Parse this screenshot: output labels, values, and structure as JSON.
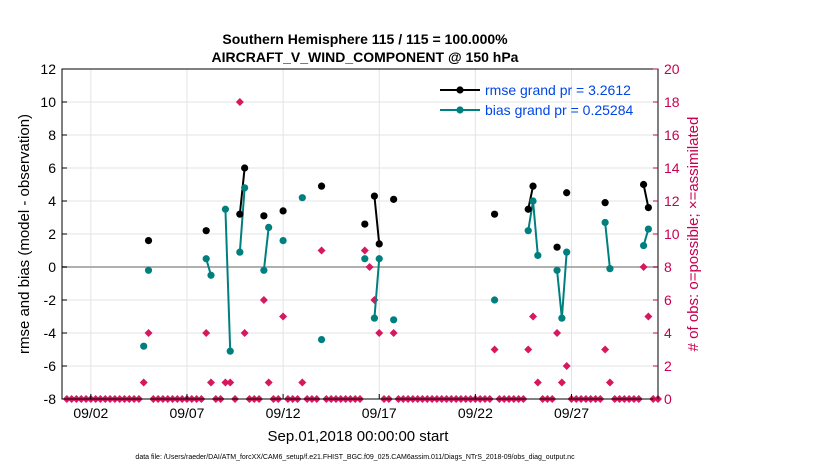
{
  "chart_data": {
    "type": "scatter",
    "title": [
      "Southern Hemisphere 115 / 115 = 100.000%",
      "AIRCRAFT_V_WIND_COMPONENT @ 150 hPa"
    ],
    "xlabel": "Sep.01,2018 00:00:00 start",
    "ylabel_left": "rmse and bias (model - observation)",
    "ylabel_right": "# of obs: o=possible; ×=assimilated",
    "footnote": "data file: /Users/raeder/DAI/ATM_forcXX/CAM6_setup/f.e21.FHIST_BGC.f09_025.CAM6assim.011/Diags_NTrS_2018-09/obs_diag_output.nc",
    "x_range": [
      0.5,
      31.5
    ],
    "x_ticks": [
      {
        "x": 2,
        "label": "09/02"
      },
      {
        "x": 7,
        "label": "09/07"
      },
      {
        "x": 12,
        "label": "09/12"
      },
      {
        "x": 17,
        "label": "09/17"
      },
      {
        "x": 22,
        "label": "09/22"
      },
      {
        "x": 27,
        "label": "09/27"
      }
    ],
    "ylim_left": [
      -8,
      12
    ],
    "yticks_left": [
      -8,
      -6,
      -4,
      -2,
      0,
      2,
      4,
      6,
      8,
      10,
      12
    ],
    "ylim_right": [
      0,
      20
    ],
    "yticks_right": [
      0,
      2,
      4,
      6,
      8,
      10,
      12,
      14,
      16,
      18,
      20
    ],
    "grid": true,
    "legend_position": "top-right",
    "colors": {
      "rmse": "#000000",
      "bias": "#007f7f",
      "count": "#d6185e",
      "zero_line": "#b0b0b0",
      "grid": "#e3e3e3"
    },
    "series": [
      {
        "name": "rmse grand pr = 3.2612",
        "color": "#000000",
        "points": [
          [
            5.0,
            1.6
          ],
          [
            8.0,
            2.2
          ],
          [
            9.75,
            3.2
          ],
          [
            10.0,
            6.0
          ],
          [
            11.0,
            3.1
          ],
          [
            12.0,
            3.4
          ],
          [
            14.0,
            4.9
          ],
          [
            16.25,
            2.6
          ],
          [
            16.75,
            4.3
          ],
          [
            17.0,
            1.4
          ],
          [
            17.75,
            4.1
          ],
          [
            23.0,
            3.2
          ],
          [
            24.75,
            3.5
          ],
          [
            25.0,
            4.9
          ],
          [
            26.25,
            1.2
          ],
          [
            26.75,
            4.5
          ],
          [
            28.75,
            3.9
          ],
          [
            30.75,
            5.0
          ],
          [
            31.0,
            3.6
          ]
        ],
        "lines": [
          [
            9.75,
            10.0
          ],
          [
            16.75,
            17.0
          ],
          [
            24.75,
            25.0
          ],
          [
            30.75,
            31.0
          ]
        ]
      },
      {
        "name": "bias grand pr = 0.25284",
        "color": "#007f7f",
        "points": [
          [
            4.75,
            -4.8
          ],
          [
            5.0,
            -0.2
          ],
          [
            8.0,
            0.5
          ],
          [
            8.25,
            -0.5
          ],
          [
            9.0,
            3.5
          ],
          [
            9.25,
            -5.1
          ],
          [
            9.75,
            0.9
          ],
          [
            10.0,
            4.8
          ],
          [
            11.0,
            -0.2
          ],
          [
            11.25,
            2.4
          ],
          [
            12.0,
            1.6
          ],
          [
            13.0,
            4.2
          ],
          [
            14.0,
            -4.4
          ],
          [
            16.25,
            0.5
          ],
          [
            16.75,
            -3.1
          ],
          [
            17.0,
            0.5
          ],
          [
            17.75,
            -3.2
          ],
          [
            23.0,
            -2.0
          ],
          [
            24.75,
            2.2
          ],
          [
            25.0,
            4.0
          ],
          [
            25.25,
            0.7
          ],
          [
            26.25,
            -0.2
          ],
          [
            26.5,
            -3.1
          ],
          [
            26.75,
            0.9
          ],
          [
            28.75,
            2.7
          ],
          [
            29.0,
            -0.1
          ],
          [
            30.75,
            1.3
          ],
          [
            31.0,
            2.3
          ]
        ],
        "lines": [
          [
            8.0,
            8.25
          ],
          [
            9.0,
            9.25
          ],
          [
            9.75,
            10.0
          ],
          [
            11.0,
            11.25
          ],
          [
            16.75,
            17.0
          ],
          [
            24.75,
            25.0,
            25.25
          ],
          [
            26.25,
            26.5,
            26.75
          ],
          [
            28.75,
            29.0
          ],
          [
            30.75,
            31.0
          ]
        ]
      }
    ],
    "obs_counts": {
      "color": "#d6185e",
      "possible_zero_x_start": 0.75,
      "possible_zero_x_end": 31.5,
      "possible_zero_x_step": 0.25,
      "nonzero": [
        [
          4.75,
          1
        ],
        [
          5.0,
          4
        ],
        [
          8.0,
          4
        ],
        [
          8.25,
          1
        ],
        [
          9.0,
          1
        ],
        [
          9.25,
          1
        ],
        [
          9.75,
          18
        ],
        [
          10.0,
          4
        ],
        [
          11.0,
          6
        ],
        [
          11.25,
          1
        ],
        [
          12.0,
          5
        ],
        [
          13.0,
          1
        ],
        [
          14.0,
          9
        ],
        [
          16.25,
          9
        ],
        [
          16.5,
          8
        ],
        [
          16.75,
          6
        ],
        [
          17.0,
          4
        ],
        [
          17.75,
          4
        ],
        [
          23.0,
          3
        ],
        [
          24.75,
          3
        ],
        [
          25.0,
          5
        ],
        [
          25.25,
          1
        ],
        [
          26.25,
          4
        ],
        [
          26.5,
          1
        ],
        [
          26.75,
          2
        ],
        [
          28.75,
          3
        ],
        [
          29.0,
          1
        ],
        [
          30.75,
          8
        ],
        [
          31.0,
          5
        ]
      ]
    }
  }
}
